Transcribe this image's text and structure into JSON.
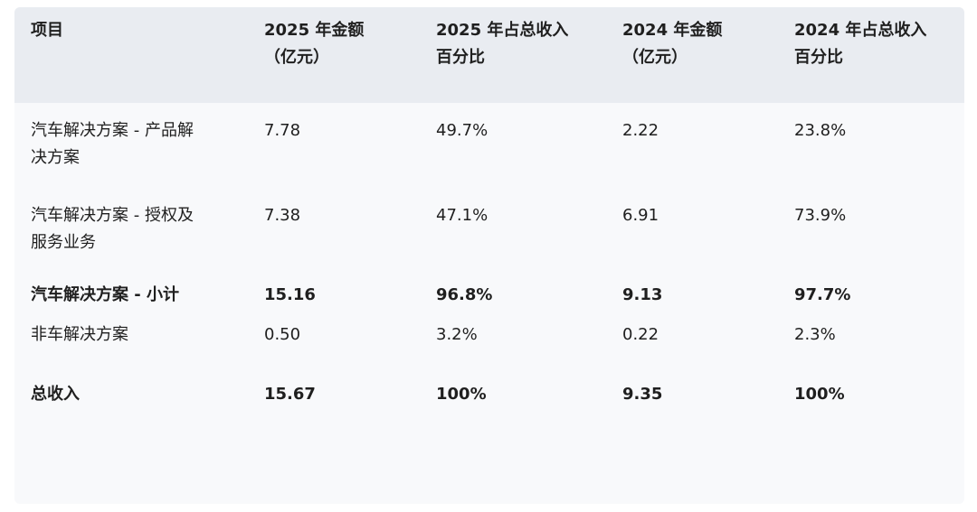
{
  "table": {
    "headers": [
      "项目",
      "2025 年金额\n（亿元）",
      "2025 年占总收入\n百分比",
      "2024 年金额\n（亿元）",
      "2024 年占总收入\n百分比"
    ],
    "header_lines": [
      [
        "项目"
      ],
      [
        "2025 年金额",
        "（亿元）"
      ],
      [
        "2025 年占总收入",
        "百分比"
      ],
      [
        "2024 年金额",
        "（亿元）"
      ],
      [
        "2024 年占总收入",
        "百分比"
      ]
    ],
    "rows": [
      {
        "bold": false,
        "cells": [
          [
            "汽车解决方案 - 产品解",
            "决方案"
          ],
          [
            "7.78"
          ],
          [
            "49.7%"
          ],
          [
            "2.22"
          ],
          [
            "23.8%"
          ]
        ]
      },
      {
        "bold": false,
        "cells": [
          [
            "汽车解决方案 - 授权及",
            "服务业务"
          ],
          [
            "7.38"
          ],
          [
            "47.1%"
          ],
          [
            "6.91"
          ],
          [
            "73.9%"
          ]
        ]
      },
      {
        "bold": true,
        "cells": [
          [
            "汽车解决方案 - 小计"
          ],
          [
            "15.16"
          ],
          [
            "96.8%"
          ],
          [
            "9.13"
          ],
          [
            "97.7%"
          ]
        ]
      },
      {
        "bold": false,
        "cells": [
          [
            "非车解决方案"
          ],
          [
            "0.50"
          ],
          [
            "3.2%"
          ],
          [
            "0.22"
          ],
          [
            "2.3%"
          ]
        ]
      },
      {
        "bold": true,
        "cells": [
          [
            "总收入"
          ],
          [
            "15.67"
          ],
          [
            "100%"
          ],
          [
            "9.35"
          ],
          [
            "100%"
          ]
        ]
      }
    ]
  },
  "colors": {
    "card_background": "#f8f9fb",
    "header_background": "#e9ecf1",
    "text": "#1f1f1f"
  }
}
